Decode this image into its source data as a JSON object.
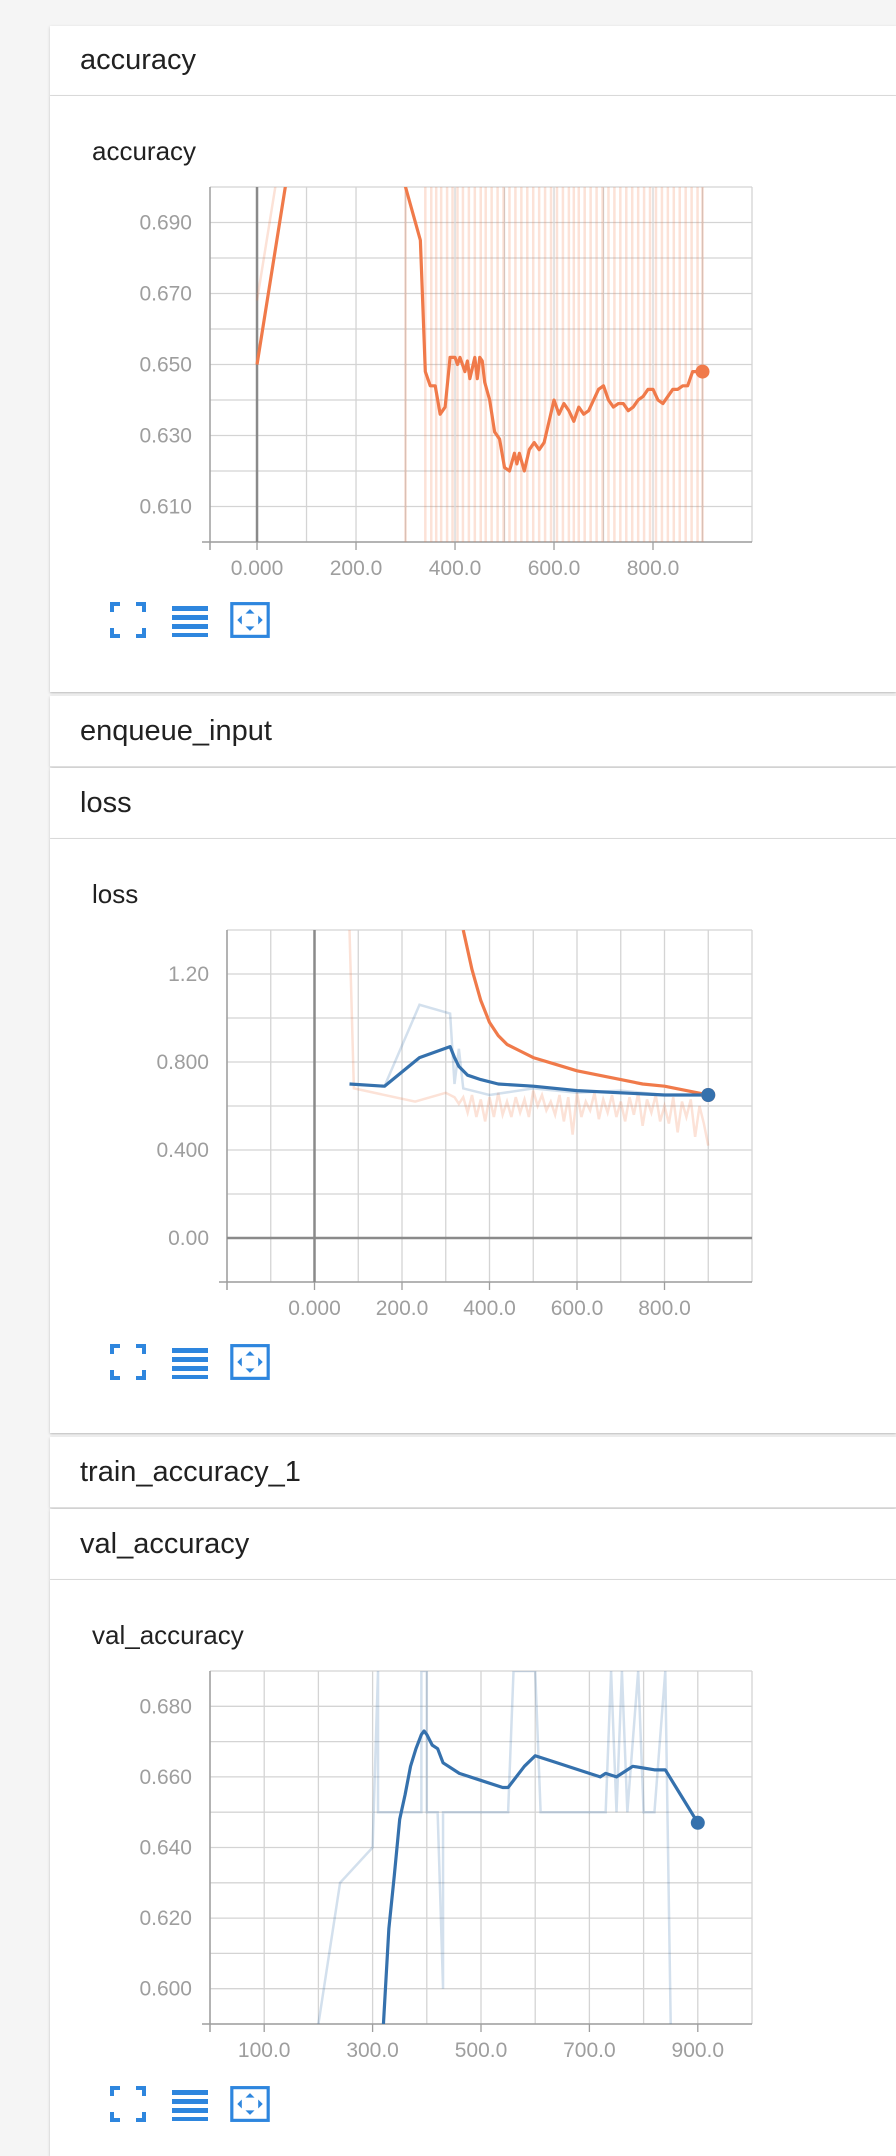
{
  "sections": {
    "accuracy_header": "accuracy",
    "enqueue_header": "enqueue_input",
    "loss_header": "loss",
    "train_accuracy_header": "train_accuracy_1",
    "val_accuracy_header": "val_accuracy"
  },
  "panels": {
    "accuracy": {
      "title": "accuracy"
    },
    "loss": {
      "title": "loss"
    },
    "val_accuracy": {
      "title": "val_accuracy"
    }
  },
  "icons": [
    "fit-to-screen-icon",
    "toggle-log-scale-icon",
    "fit-domain-icon"
  ],
  "colors": {
    "orange": "#f07a4a",
    "blue": "#3571ad",
    "grid": "#d4d4d4",
    "axis": "#9e9e9e"
  },
  "chart_data": [
    {
      "type": "line",
      "title": "accuracy",
      "x_ticks": [
        "0.000",
        "200.0",
        "400.0",
        "600.0",
        "800.0"
      ],
      "y_ticks": [
        "0.610",
        "0.630",
        "0.650",
        "0.670",
        "0.690"
      ],
      "xlim": [
        -95,
        1000
      ],
      "ylim": [
        0.6,
        0.7
      ],
      "grid": true,
      "series": [
        {
          "color": "#f07a4a",
          "values_smoothed": [
            [
              0,
              0.65
            ],
            [
              80,
              0.72
            ],
            [
              240,
              0.72
            ],
            [
              300,
              0.7
            ],
            [
              330,
              0.685
            ],
            [
              340,
              0.648
            ],
            [
              350,
              0.644
            ],
            [
              360,
              0.644
            ],
            [
              370,
              0.636
            ],
            [
              380,
              0.638
            ],
            [
              390,
              0.652
            ],
            [
              400,
              0.652
            ],
            [
              405,
              0.65
            ],
            [
              410,
              0.652
            ],
            [
              420,
              0.648
            ],
            [
              425,
              0.651
            ],
            [
              430,
              0.646
            ],
            [
              440,
              0.652
            ],
            [
              445,
              0.646
            ],
            [
              450,
              0.652
            ],
            [
              455,
              0.651
            ],
            [
              460,
              0.645
            ],
            [
              470,
              0.64
            ],
            [
              480,
              0.631
            ],
            [
              490,
              0.629
            ],
            [
              500,
              0.621
            ],
            [
              510,
              0.62
            ],
            [
              520,
              0.625
            ],
            [
              525,
              0.622
            ],
            [
              530,
              0.625
            ],
            [
              540,
              0.62
            ],
            [
              550,
              0.626
            ],
            [
              560,
              0.628
            ],
            [
              570,
              0.626
            ],
            [
              580,
              0.628
            ],
            [
              590,
              0.634
            ],
            [
              600,
              0.64
            ],
            [
              610,
              0.636
            ],
            [
              620,
              0.639
            ],
            [
              630,
              0.637
            ],
            [
              640,
              0.634
            ],
            [
              650,
              0.638
            ],
            [
              660,
              0.636
            ],
            [
              670,
              0.637
            ],
            [
              680,
              0.64
            ],
            [
              690,
              0.643
            ],
            [
              700,
              0.644
            ],
            [
              710,
              0.64
            ],
            [
              720,
              0.638
            ],
            [
              730,
              0.639
            ],
            [
              740,
              0.639
            ],
            [
              750,
              0.637
            ],
            [
              760,
              0.638
            ],
            [
              770,
              0.64
            ],
            [
              780,
              0.641
            ],
            [
              790,
              0.643
            ],
            [
              800,
              0.643
            ],
            [
              810,
              0.64
            ],
            [
              820,
              0.639
            ],
            [
              830,
              0.641
            ],
            [
              840,
              0.643
            ],
            [
              850,
              0.643
            ],
            [
              860,
              0.644
            ],
            [
              870,
              0.644
            ],
            [
              880,
              0.648
            ],
            [
              900,
              0.648
            ]
          ],
          "values_raw_spikes": [
            300,
            340,
            352,
            362,
            372,
            384,
            395,
            405,
            416,
            428,
            440,
            452,
            462,
            474,
            486,
            498,
            510,
            522,
            534,
            546,
            558,
            570,
            582,
            594,
            606,
            618,
            630,
            640,
            650,
            662,
            674,
            686,
            698,
            710,
            722,
            734,
            746,
            758,
            770,
            782,
            794,
            806,
            818,
            830,
            842,
            854,
            866,
            878,
            890,
            900
          ]
        }
      ]
    },
    {
      "type": "line",
      "title": "loss",
      "x_ticks": [
        "0.000",
        "200.0",
        "400.0",
        "600.0",
        "800.0"
      ],
      "y_ticks": [
        "0.00",
        "0.400",
        "0.800",
        "1.20"
      ],
      "xlim": [
        -200,
        1000
      ],
      "ylim": [
        -0.2,
        1.4
      ],
      "grid": true,
      "series": [
        {
          "color": "#f07a4a",
          "values_smoothed": [
            [
              340,
              1.4
            ],
            [
              360,
              1.22
            ],
            [
              380,
              1.08
            ],
            [
              400,
              0.98
            ],
            [
              420,
              0.92
            ],
            [
              440,
              0.88
            ],
            [
              470,
              0.85
            ],
            [
              500,
              0.82
            ],
            [
              550,
              0.79
            ],
            [
              600,
              0.76
            ],
            [
              650,
              0.74
            ],
            [
              700,
              0.72
            ],
            [
              750,
              0.7
            ],
            [
              800,
              0.69
            ],
            [
              850,
              0.67
            ],
            [
              900,
              0.65
            ]
          ],
          "values_raw": [
            [
              80,
              1.4
            ],
            [
              90,
              0.68
            ],
            [
              230,
              0.62
            ],
            [
              300,
              0.66
            ],
            [
              320,
              0.64
            ],
            [
              330,
              0.61
            ],
            [
              340,
              0.64
            ],
            [
              350,
              0.57
            ],
            [
              360,
              0.65
            ],
            [
              370,
              0.55
            ],
            [
              380,
              0.63
            ],
            [
              390,
              0.53
            ],
            [
              400,
              0.64
            ],
            [
              410,
              0.55
            ],
            [
              420,
              0.66
            ],
            [
              430,
              0.56
            ],
            [
              440,
              0.62
            ],
            [
              450,
              0.55
            ],
            [
              460,
              0.64
            ],
            [
              470,
              0.57
            ],
            [
              480,
              0.63
            ],
            [
              490,
              0.55
            ],
            [
              500,
              0.67
            ],
            [
              510,
              0.6
            ],
            [
              520,
              0.65
            ],
            [
              530,
              0.58
            ],
            [
              540,
              0.62
            ],
            [
              550,
              0.56
            ],
            [
              560,
              0.65
            ],
            [
              570,
              0.53
            ],
            [
              580,
              0.64
            ],
            [
              590,
              0.47
            ],
            [
              600,
              0.66
            ],
            [
              610,
              0.55
            ],
            [
              620,
              0.62
            ],
            [
              630,
              0.58
            ],
            [
              640,
              0.66
            ],
            [
              650,
              0.54
            ],
            [
              660,
              0.63
            ],
            [
              670,
              0.57
            ],
            [
              680,
              0.65
            ],
            [
              690,
              0.55
            ],
            [
              700,
              0.62
            ],
            [
              710,
              0.53
            ],
            [
              720,
              0.64
            ],
            [
              730,
              0.56
            ],
            [
              740,
              0.66
            ],
            [
              750,
              0.51
            ],
            [
              760,
              0.63
            ],
            [
              770,
              0.57
            ],
            [
              780,
              0.65
            ],
            [
              790,
              0.53
            ],
            [
              800,
              0.6
            ],
            [
              810,
              0.52
            ],
            [
              820,
              0.64
            ],
            [
              830,
              0.48
            ],
            [
              840,
              0.62
            ],
            [
              850,
              0.55
            ],
            [
              860,
              0.63
            ],
            [
              870,
              0.46
            ],
            [
              880,
              0.6
            ],
            [
              890,
              0.52
            ],
            [
              900,
              0.42
            ]
          ]
        },
        {
          "color": "#3571ad",
          "values_smoothed": [
            [
              80,
              0.7
            ],
            [
              160,
              0.69
            ],
            [
              240,
              0.82
            ],
            [
              310,
              0.87
            ],
            [
              320,
              0.82
            ],
            [
              330,
              0.78
            ],
            [
              350,
              0.74
            ],
            [
              380,
              0.72
            ],
            [
              420,
              0.7
            ],
            [
              500,
              0.69
            ],
            [
              600,
              0.67
            ],
            [
              700,
              0.66
            ],
            [
              800,
              0.65
            ],
            [
              900,
              0.65
            ]
          ],
          "values_raw": [
            [
              80,
              0.7
            ],
            [
              160,
              0.69
            ],
            [
              240,
              1.06
            ],
            [
              310,
              1.02
            ],
            [
              320,
              0.7
            ],
            [
              330,
              0.86
            ],
            [
              340,
              0.68
            ],
            [
              400,
              0.65
            ],
            [
              500,
              0.68
            ],
            [
              600,
              0.66
            ],
            [
              700,
              0.67
            ],
            [
              800,
              0.65
            ],
            [
              900,
              0.65
            ]
          ]
        }
      ]
    },
    {
      "type": "line",
      "title": "val_accuracy",
      "x_ticks": [
        "100.0",
        "300.0",
        "500.0",
        "700.0",
        "900.0"
      ],
      "y_ticks": [
        "0.600",
        "0.620",
        "0.640",
        "0.660",
        "0.680"
      ],
      "xlim": [
        0,
        1000
      ],
      "ylim": [
        0.59,
        0.69
      ],
      "grid": true,
      "series": [
        {
          "color": "#3571ad",
          "values_smoothed": [
            [
              320,
              0.59
            ],
            [
              330,
              0.617
            ],
            [
              340,
              0.632
            ],
            [
              350,
              0.648
            ],
            [
              360,
              0.655
            ],
            [
              370,
              0.663
            ],
            [
              380,
              0.668
            ],
            [
              390,
              0.672
            ],
            [
              395,
              0.673
            ],
            [
              400,
              0.672
            ],
            [
              410,
              0.669
            ],
            [
              420,
              0.668
            ],
            [
              430,
              0.664
            ],
            [
              440,
              0.663
            ],
            [
              460,
              0.661
            ],
            [
              500,
              0.659
            ],
            [
              540,
              0.657
            ],
            [
              550,
              0.657
            ],
            [
              580,
              0.663
            ],
            [
              600,
              0.666
            ],
            [
              640,
              0.664
            ],
            [
              700,
              0.661
            ],
            [
              720,
              0.66
            ],
            [
              730,
              0.661
            ],
            [
              750,
              0.66
            ],
            [
              760,
              0.661
            ],
            [
              780,
              0.663
            ],
            [
              820,
              0.662
            ],
            [
              830,
              0.662
            ],
            [
              840,
              0.662
            ],
            [
              860,
              0.657
            ],
            [
              880,
              0.652
            ],
            [
              900,
              0.647
            ]
          ],
          "values_raw": [
            [
              200,
              0.59
            ],
            [
              240,
              0.63
            ],
            [
              300,
              0.64
            ],
            [
              310,
              0.69
            ],
            [
              310,
              0.65
            ],
            [
              390,
              0.65
            ],
            [
              390,
              0.69
            ],
            [
              400,
              0.69
            ],
            [
              400,
              0.65
            ],
            [
              420,
              0.65
            ],
            [
              430,
              0.6
            ],
            [
              430,
              0.65
            ],
            [
              550,
              0.65
            ],
            [
              560,
              0.69
            ],
            [
              600,
              0.69
            ],
            [
              610,
              0.65
            ],
            [
              730,
              0.65
            ],
            [
              740,
              0.69
            ],
            [
              750,
              0.65
            ],
            [
              760,
              0.69
            ],
            [
              770,
              0.65
            ],
            [
              790,
              0.69
            ],
            [
              800,
              0.65
            ],
            [
              820,
              0.65
            ],
            [
              840,
              0.69
            ],
            [
              850,
              0.59
            ]
          ]
        }
      ]
    }
  ]
}
